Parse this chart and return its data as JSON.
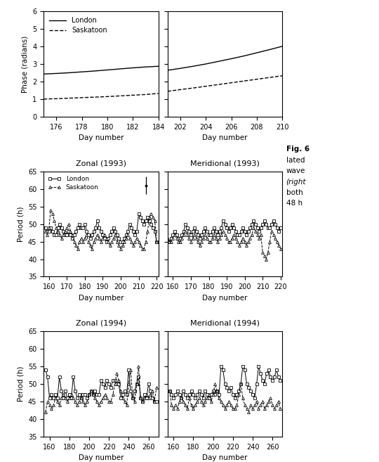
{
  "top_left": {
    "london_x": [
      175,
      176,
      177,
      178,
      179,
      180,
      181,
      182,
      183,
      184
    ],
    "london_y": [
      2.44,
      2.47,
      2.51,
      2.56,
      2.61,
      2.67,
      2.73,
      2.79,
      2.84,
      2.88
    ],
    "saskatoon_x": [
      175,
      176,
      177,
      178,
      179,
      180,
      181,
      182,
      183,
      184
    ],
    "saskatoon_y": [
      1.01,
      1.03,
      1.06,
      1.09,
      1.12,
      1.15,
      1.19,
      1.23,
      1.27,
      1.33
    ],
    "xlim": [
      175,
      184
    ],
    "ylim": [
      0,
      6
    ],
    "xticks": [
      176,
      178,
      180,
      182,
      184
    ],
    "yticks": [
      0,
      1,
      2,
      3,
      4,
      5,
      6
    ],
    "xlabel": "Day number",
    "ylabel": "Phase (radians)"
  },
  "top_right": {
    "london_x": [
      201,
      202,
      203,
      204,
      205,
      206,
      207,
      208,
      209,
      210
    ],
    "london_y": [
      2.65,
      2.76,
      2.88,
      3.01,
      3.16,
      3.31,
      3.47,
      3.65,
      3.83,
      4.02
    ],
    "saskatoon_x": [
      201,
      202,
      203,
      204,
      205,
      206,
      207,
      208,
      209,
      210
    ],
    "saskatoon_y": [
      1.45,
      1.55,
      1.64,
      1.74,
      1.84,
      1.94,
      2.04,
      2.14,
      2.24,
      2.34
    ],
    "xlim": [
      201,
      210
    ],
    "ylim": [
      0,
      6
    ],
    "xticks": [
      202,
      204,
      206,
      208,
      210
    ],
    "yticks": [
      0,
      1,
      2,
      3,
      4,
      5,
      6
    ],
    "xlabel": "Day number",
    "ylabel": ""
  },
  "zonal_1993_london_x": [
    157,
    158,
    159,
    160,
    161,
    162,
    163,
    164,
    165,
    166,
    167,
    168,
    169,
    170,
    171,
    172,
    173,
    174,
    175,
    176,
    177,
    178,
    179,
    180,
    181,
    182,
    183,
    184,
    185,
    186,
    187,
    188,
    189,
    190,
    191,
    192,
    193,
    194,
    195,
    196,
    197,
    198,
    199,
    200,
    201,
    202,
    203,
    204,
    205,
    206,
    207,
    208,
    209,
    210,
    211,
    212,
    213,
    214,
    215,
    216,
    217,
    218,
    219,
    220
  ],
  "zonal_1993_london_y": [
    49,
    49,
    48,
    48,
    49,
    48,
    47,
    47,
    49,
    50,
    49,
    48,
    47,
    47,
    48,
    47,
    46,
    47,
    48,
    49,
    50,
    49,
    49,
    50,
    48,
    47,
    46,
    47,
    48,
    49,
    51,
    49,
    48,
    47,
    46,
    45,
    46,
    47,
    48,
    49,
    48,
    47,
    46,
    45,
    45,
    46,
    47,
    48,
    50,
    49,
    48,
    47,
    48,
    53,
    52,
    51,
    50,
    51,
    52,
    51,
    50,
    49,
    48,
    45
  ],
  "zonal_1993_sask_x": [
    157,
    158,
    159,
    160,
    161,
    162,
    163,
    164,
    165,
    166,
    167,
    168,
    169,
    170,
    171,
    172,
    173,
    174,
    175,
    176,
    177,
    178,
    179,
    180,
    181,
    182,
    183,
    184,
    185,
    186,
    187,
    188,
    189,
    190,
    191,
    192,
    193,
    194,
    195,
    196,
    197,
    198,
    199,
    200,
    201,
    202,
    203,
    204,
    205,
    206,
    207,
    208,
    209,
    210,
    211,
    212,
    213,
    214,
    215,
    216,
    217,
    218,
    219,
    220
  ],
  "zonal_1993_sask_y": [
    49,
    48,
    47,
    49,
    54,
    53,
    51,
    49,
    48,
    47,
    46,
    47,
    48,
    49,
    50,
    48,
    47,
    45,
    44,
    43,
    45,
    46,
    45,
    46,
    47,
    45,
    44,
    43,
    45,
    46,
    47,
    46,
    45,
    46,
    47,
    46,
    45,
    44,
    45,
    46,
    47,
    45,
    44,
    43,
    44,
    45,
    46,
    47,
    46,
    45,
    44,
    45,
    46,
    45,
    44,
    43,
    43,
    45,
    48,
    52,
    53,
    52,
    51,
    45
  ],
  "meridional_1993_london_x": [
    157,
    158,
    159,
    160,
    161,
    162,
    163,
    164,
    165,
    166,
    167,
    168,
    169,
    170,
    171,
    172,
    173,
    174,
    175,
    176,
    177,
    178,
    179,
    180,
    181,
    182,
    183,
    184,
    185,
    186,
    187,
    188,
    189,
    190,
    191,
    192,
    193,
    194,
    195,
    196,
    197,
    198,
    199,
    200,
    201,
    202,
    203,
    204,
    205,
    206,
    207,
    208,
    209,
    210,
    211,
    212,
    213,
    214,
    215,
    216,
    217,
    218,
    219,
    220
  ],
  "meridional_1993_london_y": [
    45,
    45,
    46,
    47,
    48,
    47,
    46,
    46,
    47,
    48,
    50,
    49,
    48,
    47,
    48,
    49,
    48,
    47,
    46,
    47,
    48,
    49,
    48,
    47,
    47,
    48,
    49,
    48,
    47,
    48,
    49,
    51,
    50,
    49,
    48,
    49,
    50,
    49,
    48,
    47,
    47,
    48,
    49,
    48,
    47,
    48,
    49,
    50,
    51,
    50,
    49,
    48,
    49,
    50,
    51,
    50,
    49,
    49,
    50,
    51,
    50,
    49,
    48,
    49
  ],
  "meridional_1993_sask_x": [
    157,
    158,
    159,
    160,
    161,
    162,
    163,
    164,
    165,
    166,
    167,
    168,
    169,
    170,
    171,
    172,
    173,
    174,
    175,
    176,
    177,
    178,
    179,
    180,
    181,
    182,
    183,
    184,
    185,
    186,
    187,
    188,
    189,
    190,
    191,
    192,
    193,
    194,
    195,
    196,
    197,
    198,
    199,
    200,
    201,
    202,
    203,
    204,
    205,
    206,
    207,
    208,
    209,
    210,
    211,
    212,
    213,
    214,
    215,
    216,
    217,
    218,
    219,
    220
  ],
  "meridional_1993_sask_y": [
    46,
    45,
    45,
    46,
    47,
    46,
    45,
    45,
    46,
    47,
    48,
    47,
    46,
    45,
    46,
    47,
    46,
    45,
    44,
    45,
    46,
    47,
    46,
    45,
    45,
    46,
    47,
    46,
    45,
    46,
    47,
    48,
    47,
    46,
    45,
    45,
    46,
    47,
    46,
    45,
    44,
    45,
    46,
    45,
    44,
    45,
    46,
    47,
    49,
    48,
    47,
    46,
    47,
    42,
    41,
    40,
    42,
    45,
    48,
    47,
    46,
    45,
    44,
    43
  ],
  "zonal_1994_london_x": [
    156,
    158,
    160,
    162,
    164,
    166,
    168,
    170,
    172,
    174,
    176,
    178,
    180,
    182,
    184,
    186,
    188,
    190,
    192,
    194,
    196,
    198,
    200,
    202,
    204,
    206,
    208,
    210,
    212,
    214,
    216,
    218,
    220,
    222,
    224,
    226,
    228,
    230,
    232,
    234,
    236,
    238,
    240,
    242,
    244,
    246,
    248,
    250,
    252,
    254,
    256,
    258,
    260,
    262,
    264,
    266,
    268
  ],
  "zonal_1994_london_y": [
    54,
    52,
    46,
    47,
    46,
    47,
    46,
    52,
    48,
    46,
    48,
    46,
    47,
    46,
    52,
    48,
    46,
    47,
    46,
    47,
    47,
    46,
    47,
    48,
    47,
    48,
    47,
    47,
    51,
    50,
    49,
    51,
    50,
    49,
    51,
    51,
    50,
    50,
    46,
    47,
    48,
    47,
    54,
    48,
    46,
    48,
    50,
    52,
    46,
    45,
    47,
    46,
    50,
    48,
    46,
    45,
    45
  ],
  "zonal_1994_sask_x": [
    156,
    158,
    160,
    162,
    164,
    166,
    168,
    170,
    172,
    174,
    176,
    178,
    180,
    182,
    184,
    186,
    188,
    190,
    192,
    194,
    196,
    198,
    200,
    202,
    204,
    206,
    208,
    210,
    212,
    214,
    216,
    218,
    220,
    222,
    224,
    226,
    228,
    230,
    232,
    234,
    236,
    238,
    240,
    242,
    244,
    246,
    248,
    250,
    252,
    254,
    256,
    258,
    260,
    262,
    264,
    266,
    268
  ],
  "zonal_1994_sask_y": [
    42,
    45,
    44,
    43,
    44,
    46,
    45,
    44,
    46,
    47,
    46,
    45,
    46,
    47,
    46,
    45,
    44,
    45,
    46,
    45,
    44,
    45,
    47,
    48,
    47,
    46,
    45,
    44,
    45,
    46,
    47,
    46,
    45,
    45,
    47,
    50,
    53,
    51,
    48,
    46,
    45,
    44,
    50,
    54,
    46,
    45,
    50,
    55,
    46,
    45,
    46,
    47,
    46,
    47,
    48,
    45,
    49
  ],
  "meridional_1994_london_x": [
    156,
    158,
    160,
    162,
    164,
    166,
    168,
    170,
    172,
    174,
    176,
    178,
    180,
    182,
    184,
    186,
    188,
    190,
    192,
    194,
    196,
    198,
    200,
    202,
    204,
    206,
    208,
    210,
    212,
    214,
    216,
    218,
    220,
    222,
    224,
    226,
    228,
    230,
    232,
    234,
    236,
    238,
    240,
    242,
    244,
    246,
    248,
    250,
    252,
    254,
    256,
    258,
    260,
    262,
    264,
    266,
    268
  ],
  "meridional_1994_london_y": [
    48,
    47,
    46,
    47,
    48,
    47,
    46,
    48,
    47,
    46,
    47,
    48,
    47,
    46,
    47,
    48,
    47,
    46,
    48,
    47,
    46,
    47,
    48,
    47,
    48,
    47,
    55,
    54,
    50,
    49,
    48,
    49,
    47,
    46,
    47,
    48,
    50,
    55,
    54,
    50,
    49,
    48,
    47,
    46,
    50,
    55,
    53,
    51,
    50,
    53,
    54,
    52,
    51,
    52,
    54,
    52,
    51
  ],
  "meridional_1994_sask_x": [
    156,
    158,
    160,
    162,
    164,
    166,
    168,
    170,
    172,
    174,
    176,
    178,
    180,
    182,
    184,
    186,
    188,
    190,
    192,
    194,
    196,
    198,
    200,
    202,
    204,
    206,
    208,
    210,
    212,
    214,
    216,
    218,
    220,
    222,
    224,
    226,
    228,
    230,
    232,
    234,
    236,
    238,
    240,
    242,
    244,
    246,
    248,
    250,
    252,
    254,
    256,
    258,
    260,
    262,
    264,
    266,
    268
  ],
  "meridional_1994_sask_y": [
    48,
    44,
    43,
    44,
    43,
    45,
    46,
    45,
    44,
    43,
    46,
    44,
    43,
    44,
    45,
    46,
    45,
    44,
    45,
    46,
    47,
    45,
    47,
    50,
    48,
    46,
    45,
    44,
    43,
    44,
    45,
    44,
    43,
    43,
    44,
    47,
    50,
    46,
    44,
    43,
    42,
    44,
    43,
    44,
    45,
    43,
    44,
    45,
    43,
    44,
    45,
    46,
    44,
    43,
    44,
    45,
    43
  ],
  "period_xlim_1993": [
    157,
    221
  ],
  "period_xlim_1994": [
    154,
    270
  ],
  "period_ylim": [
    35,
    65
  ],
  "period_yticks": [
    35,
    40,
    45,
    50,
    55,
    60,
    65
  ],
  "period_xticks_1993": [
    160,
    170,
    180,
    190,
    200,
    210,
    220
  ],
  "period_xticks_1994": [
    160,
    180,
    200,
    220,
    240,
    260
  ],
  "fig6_text": [
    "Fig. 6",
    "lated",
    "wave",
    "(right",
    "both",
    "48 h"
  ]
}
